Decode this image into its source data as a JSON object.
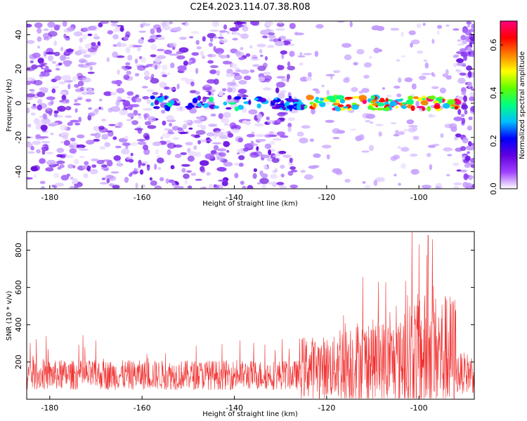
{
  "title": "C2E4.2023.114.07.38.R08",
  "chart_data": [
    {
      "type": "heatmap",
      "xlabel": "Height of straight line (km)",
      "ylabel": "Frequency (Hz)",
      "xlim": [
        -185,
        -88
      ],
      "ylim": [
        -50,
        48
      ],
      "x_ticks": [
        -180,
        -160,
        -140,
        -120,
        -100
      ],
      "y_ticks": [
        -40,
        -20,
        0,
        20,
        40
      ],
      "signal_band": {
        "frequency_center": 0,
        "x_start": -158,
        "x_end": -91,
        "peak_x": -98
      },
      "colorbar": {
        "label": "Normalized spectral amplitude",
        "range": [
          0.0,
          0.7
        ],
        "ticks": [
          0.0,
          0.2,
          0.4,
          0.6
        ],
        "colors": [
          "#ffffff",
          "#a040ff",
          "#6000e0",
          "#0000ff",
          "#00c0ff",
          "#00ff80",
          "#60ff00",
          "#ffff00",
          "#ff8000",
          "#ff0000",
          "#ff0080"
        ]
      }
    },
    {
      "type": "line",
      "xlabel": "Height of straight line (km)",
      "ylabel": "SNR (10 * v/v)",
      "xlim": [
        -185,
        -88
      ],
      "ylim": [
        0,
        900
      ],
      "x_ticks": [
        -180,
        -160,
        -140,
        -120,
        -100
      ],
      "y_ticks": [
        200,
        400,
        600,
        800
      ],
      "series_color": "#f03030",
      "baseline_level": 130,
      "peak": {
        "x": -98,
        "value": 880
      }
    }
  ]
}
